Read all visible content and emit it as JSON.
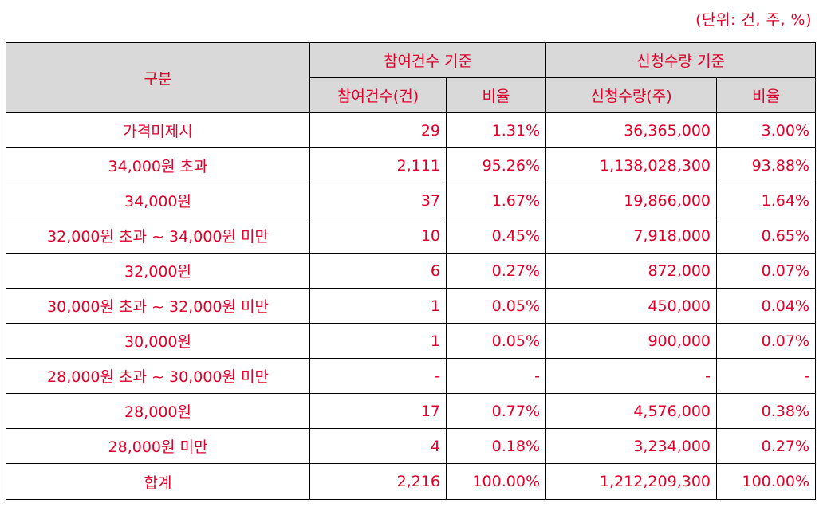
{
  "unit_note": "(단위: 건, 주, %)",
  "header": {
    "category": "구분",
    "group_count": "참여건수 기준",
    "group_quantity": "신청수량 기준",
    "count": "참여건수(건)",
    "count_ratio": "비율",
    "quantity": "신청수량(주)",
    "quantity_ratio": "비율"
  },
  "rows": [
    {
      "category": "가격미제시",
      "count": "29",
      "count_ratio": "1.31%",
      "quantity": "36,365,000",
      "quantity_ratio": "3.00%"
    },
    {
      "category": "34,000원 초과",
      "count": "2,111",
      "count_ratio": "95.26%",
      "quantity": "1,138,028,300",
      "quantity_ratio": "93.88%"
    },
    {
      "category": "34,000원",
      "count": "37",
      "count_ratio": "1.67%",
      "quantity": "19,866,000",
      "quantity_ratio": "1.64%"
    },
    {
      "category": "32,000원 초과 ~ 34,000원 미만",
      "count": "10",
      "count_ratio": "0.45%",
      "quantity": "7,918,000",
      "quantity_ratio": "0.65%"
    },
    {
      "category": "32,000원",
      "count": "6",
      "count_ratio": "0.27%",
      "quantity": "872,000",
      "quantity_ratio": "0.07%"
    },
    {
      "category": "30,000원 초과 ~ 32,000원 미만",
      "count": "1",
      "count_ratio": "0.05%",
      "quantity": "450,000",
      "quantity_ratio": "0.04%"
    },
    {
      "category": "30,000원",
      "count": "1",
      "count_ratio": "0.05%",
      "quantity": "900,000",
      "quantity_ratio": "0.07%"
    },
    {
      "category": "28,000원 초과 ~ 30,000원 미만",
      "count": "-",
      "count_ratio": "-",
      "quantity": "-",
      "quantity_ratio": "-"
    },
    {
      "category": "28,000원",
      "count": "17",
      "count_ratio": "0.77%",
      "quantity": "4,576,000",
      "quantity_ratio": "0.38%"
    },
    {
      "category": "28,000원 미만",
      "count": "4",
      "count_ratio": "0.18%",
      "quantity": "3,234,000",
      "quantity_ratio": "0.27%"
    }
  ],
  "total": {
    "category": "합계",
    "count": "2,216",
    "count_ratio": "100.00%",
    "quantity": "1,212,209,300",
    "quantity_ratio": "100.00%"
  }
}
